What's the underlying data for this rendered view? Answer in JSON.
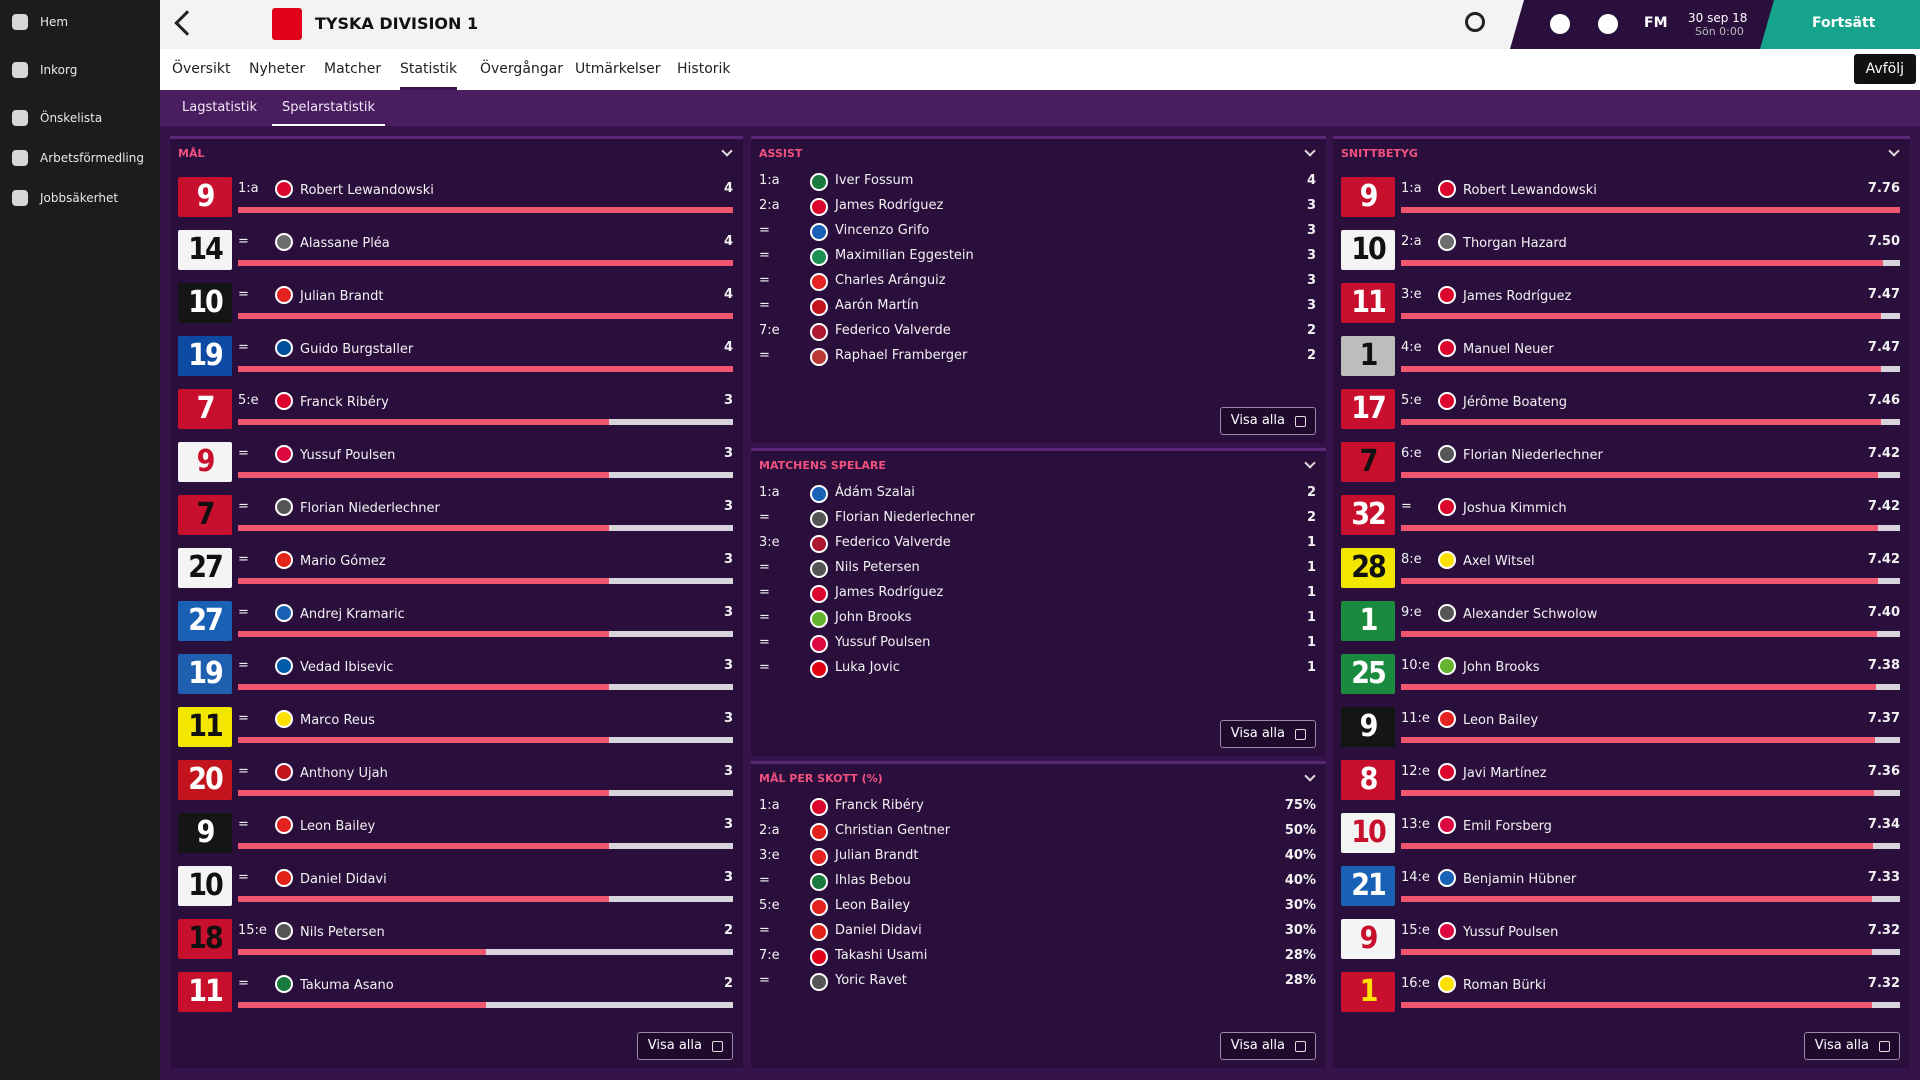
{
  "sidebar": [
    "Hem",
    "Inkorg",
    "Önskelista",
    "Arbetsförmedling",
    "Jobbsäkerhet"
  ],
  "header": {
    "title": "TYSKA DIVISION 1",
    "brand": "FM",
    "date": "30 sep 18",
    "time": "Sön 0:00",
    "continue": "Fortsätt"
  },
  "tabs": [
    "Översikt",
    "Nyheter",
    "Matcher",
    "Statistik",
    "Övergångar",
    "Utmärkelser",
    "Historik"
  ],
  "active_tab": 3,
  "unfollow": "Avfölj",
  "subtabs": [
    "Lagstatistik",
    "Spelarstatistik"
  ],
  "active_subtab": 1,
  "panels": [
    {
      "title": "MÅL",
      "button": "Visa alla",
      "rows": [
        {
          "shirt": 9,
          "shirt_color": "#c8102e",
          "shirt_text": "#ffffff",
          "rank": "1:a",
          "name": "Robert Lewandowski",
          "badge": "#dc052d",
          "value": 4
        },
        {
          "shirt": 14,
          "shirt_color": "#f4f4f4",
          "shirt_text": "#111111",
          "rank": "=",
          "name": "Alassane Pléa",
          "badge": "#6d6d6d",
          "value": 4
        },
        {
          "shirt": 10,
          "shirt_color": "#151515",
          "shirt_text": "#ffffff",
          "rank": "=",
          "name": "Julian Brandt",
          "badge": "#e32221",
          "value": 4
        },
        {
          "shirt": 19,
          "shirt_color": "#0d4aa3",
          "shirt_text": "#ffffff",
          "rank": "=",
          "name": "Guido Burgstaller",
          "badge": "#004d9d",
          "value": 4
        },
        {
          "shirt": 7,
          "shirt_color": "#c8102e",
          "shirt_text": "#ffffff",
          "rank": "5:e",
          "name": "Franck Ribéry",
          "badge": "#dc052d",
          "value": 3
        },
        {
          "shirt": 9,
          "shirt_color": "#f4f4f4",
          "shirt_text": "#c8102e",
          "rank": "=",
          "name": "Yussuf Poulsen",
          "badge": "#dd0741",
          "value": 3
        },
        {
          "shirt": 7,
          "shirt_color": "#c8102e",
          "shirt_text": "#111111",
          "rank": "=",
          "name": "Florian Niederlechner",
          "badge": "#555555",
          "value": 3
        },
        {
          "shirt": 27,
          "shirt_color": "#f4f4f4",
          "shirt_text": "#111111",
          "rank": "=",
          "name": "Mario Gómez",
          "badge": "#e32219",
          "value": 3
        },
        {
          "shirt": 27,
          "shirt_color": "#1961b5",
          "shirt_text": "#ffffff",
          "rank": "=",
          "name": "Andrej Kramaric",
          "badge": "#1961b5",
          "value": 3
        },
        {
          "shirt": 19,
          "shirt_color": "#1e5fb0",
          "shirt_text": "#ffffff",
          "rank": "=",
          "name": "Vedad Ibisevic",
          "badge": "#005ca9",
          "value": 3
        },
        {
          "shirt": 11,
          "shirt_color": "#f3e600",
          "shirt_text": "#111111",
          "rank": "=",
          "name": "Marco Reus",
          "badge": "#fde100",
          "value": 3
        },
        {
          "shirt": 20,
          "shirt_color": "#c3141e",
          "shirt_text": "#ffffff",
          "rank": "=",
          "name": "Anthony Ujah",
          "badge": "#c3141e",
          "value": 3
        },
        {
          "shirt": 9,
          "shirt_color": "#151515",
          "shirt_text": "#ffffff",
          "rank": "=",
          "name": "Leon Bailey",
          "badge": "#e32221",
          "value": 3
        },
        {
          "shirt": 10,
          "shirt_color": "#f4f4f4",
          "shirt_text": "#111111",
          "rank": "=",
          "name": "Daniel Didavi",
          "badge": "#e32219",
          "value": 3
        },
        {
          "shirt": 18,
          "shirt_color": "#c8102e",
          "shirt_text": "#111111",
          "rank": "15:e",
          "name": "Nils Petersen",
          "badge": "#555555",
          "value": 2
        },
        {
          "shirt": 11,
          "shirt_color": "#c8102e",
          "shirt_text": "#ffffff",
          "rank": "=",
          "name": "Takuma Asano",
          "badge": "#1b7a3d",
          "value": 2
        }
      ]
    },
    {
      "title": "ASSIST",
      "button": "Visa alla",
      "rows": [
        {
          "rank": "1:a",
          "name": "Iver Fossum",
          "badge": "#1b7a3d",
          "value": 4
        },
        {
          "rank": "2:a",
          "name": "James Rodríguez",
          "badge": "#dc052d",
          "value": 3
        },
        {
          "rank": "=",
          "name": "Vincenzo Grifo",
          "badge": "#1961b5",
          "value": 3
        },
        {
          "rank": "=",
          "name": "Maximilian Eggestein",
          "badge": "#1d9053",
          "value": 3
        },
        {
          "rank": "=",
          "name": "Charles Aránguiz",
          "badge": "#e32221",
          "value": 3
        },
        {
          "rank": "=",
          "name": "Aarón Martín",
          "badge": "#c3141e",
          "value": 3
        },
        {
          "rank": "7:e",
          "name": "Federico Valverde",
          "badge": "#ad1732",
          "value": 2
        },
        {
          "rank": "=",
          "name": "Raphael Framberger",
          "badge": "#ba3733",
          "value": 2
        }
      ]
    },
    {
      "title": "MATCHENS SPELARE",
      "button": "Visa alla",
      "rows": [
        {
          "rank": "1:a",
          "name": "Ádám Szalai",
          "badge": "#1961b5",
          "value": 2
        },
        {
          "rank": "=",
          "name": "Florian Niederlechner",
          "badge": "#555555",
          "value": 2
        },
        {
          "rank": "3:e",
          "name": "Federico Valverde",
          "badge": "#ad1732",
          "value": 1
        },
        {
          "rank": "=",
          "name": "Nils Petersen",
          "badge": "#555555",
          "value": 1
        },
        {
          "rank": "=",
          "name": "James Rodríguez",
          "badge": "#dc052d",
          "value": 1
        },
        {
          "rank": "=",
          "name": "John Brooks",
          "badge": "#65b32e",
          "value": 1
        },
        {
          "rank": "=",
          "name": "Yussuf Poulsen",
          "badge": "#dd0741",
          "value": 1
        },
        {
          "rank": "=",
          "name": "Luka Jovic",
          "badge": "#e1000f",
          "value": 1
        }
      ]
    },
    {
      "title": "MÅL PER SKOTT (%)",
      "button": "Visa alla",
      "rows": [
        {
          "rank": "1:a",
          "name": "Franck Ribéry",
          "badge": "#dc052d",
          "value": "75%"
        },
        {
          "rank": "2:a",
          "name": "Christian Gentner",
          "badge": "#e32219",
          "value": "50%"
        },
        {
          "rank": "3:e",
          "name": "Julian Brandt",
          "badge": "#e32221",
          "value": "40%"
        },
        {
          "rank": "=",
          "name": "Ihlas Bebou",
          "badge": "#1b7a3d",
          "value": "40%"
        },
        {
          "rank": "5:e",
          "name": "Leon Bailey",
          "badge": "#e32221",
          "value": "30%"
        },
        {
          "rank": "=",
          "name": "Daniel Didavi",
          "badge": "#e32219",
          "value": "30%"
        },
        {
          "rank": "7:e",
          "name": "Takashi Usami",
          "badge": "#e2001a",
          "value": "28%"
        },
        {
          "rank": "=",
          "name": "Yoric Ravet",
          "badge": "#555555",
          "value": "28%"
        }
      ]
    },
    {
      "title": "SNITTBETYG",
      "button": "Visa alla",
      "rows": [
        {
          "shirt": 9,
          "shirt_color": "#c8102e",
          "shirt_text": "#ffffff",
          "rank": "1:a",
          "name": "Robert Lewandowski",
          "badge": "#dc052d",
          "value": "7.76"
        },
        {
          "shirt": 10,
          "shirt_color": "#f4f4f4",
          "shirt_text": "#111111",
          "rank": "2:a",
          "name": "Thorgan Hazard",
          "badge": "#6d6d6d",
          "value": "7.50"
        },
        {
          "shirt": 11,
          "shirt_color": "#c8102e",
          "shirt_text": "#ffffff",
          "rank": "3:e",
          "name": "James Rodríguez",
          "badge": "#dc052d",
          "value": "7.47"
        },
        {
          "shirt": 1,
          "shirt_color": "#bdbdbd",
          "shirt_text": "#111111",
          "rank": "4:e",
          "name": "Manuel Neuer",
          "badge": "#dc052d",
          "value": "7.47"
        },
        {
          "shirt": 17,
          "shirt_color": "#c8102e",
          "shirt_text": "#ffffff",
          "rank": "5:e",
          "name": "Jérôme Boateng",
          "badge": "#dc052d",
          "value": "7.46"
        },
        {
          "shirt": 7,
          "shirt_color": "#c8102e",
          "shirt_text": "#111111",
          "rank": "6:e",
          "name": "Florian Niederlechner",
          "badge": "#555555",
          "value": "7.42"
        },
        {
          "shirt": 32,
          "shirt_color": "#c8102e",
          "shirt_text": "#ffffff",
          "rank": "=",
          "name": "Joshua Kimmich",
          "badge": "#dc052d",
          "value": "7.42"
        },
        {
          "shirt": 28,
          "shirt_color": "#f3e600",
          "shirt_text": "#111111",
          "rank": "8:e",
          "name": "Axel Witsel",
          "badge": "#fde100",
          "value": "7.42"
        },
        {
          "shirt": 1,
          "shirt_color": "#1a8a3e",
          "shirt_text": "#ffffff",
          "rank": "9:e",
          "name": "Alexander Schwolow",
          "badge": "#555555",
          "value": "7.40"
        },
        {
          "shirt": 25,
          "shirt_color": "#1a8a3e",
          "shirt_text": "#ffffff",
          "rank": "10:e",
          "name": "John Brooks",
          "badge": "#65b32e",
          "value": "7.38"
        },
        {
          "shirt": 9,
          "shirt_color": "#151515",
          "shirt_text": "#ffffff",
          "rank": "11:e",
          "name": "Leon Bailey",
          "badge": "#e32221",
          "value": "7.37"
        },
        {
          "shirt": 8,
          "shirt_color": "#c8102e",
          "shirt_text": "#ffffff",
          "rank": "12:e",
          "name": "Javi Martínez",
          "badge": "#dc052d",
          "value": "7.36"
        },
        {
          "shirt": 10,
          "shirt_color": "#f4f4f4",
          "shirt_text": "#c8102e",
          "rank": "13:e",
          "name": "Emil Forsberg",
          "badge": "#dd0741",
          "value": "7.34"
        },
        {
          "shirt": 21,
          "shirt_color": "#1961b5",
          "shirt_text": "#ffffff",
          "rank": "14:e",
          "name": "Benjamin Hübner",
          "badge": "#1961b5",
          "value": "7.33"
        },
        {
          "shirt": 9,
          "shirt_color": "#f4f4f4",
          "shirt_text": "#c8102e",
          "rank": "15:e",
          "name": "Yussuf Poulsen",
          "badge": "#dd0741",
          "value": "7.32"
        },
        {
          "shirt": 1,
          "shirt_color": "#c8102e",
          "shirt_text": "#fde100",
          "rank": "16:e",
          "name": "Roman Bürki",
          "badge": "#fde100",
          "value": "7.32"
        }
      ]
    }
  ]
}
